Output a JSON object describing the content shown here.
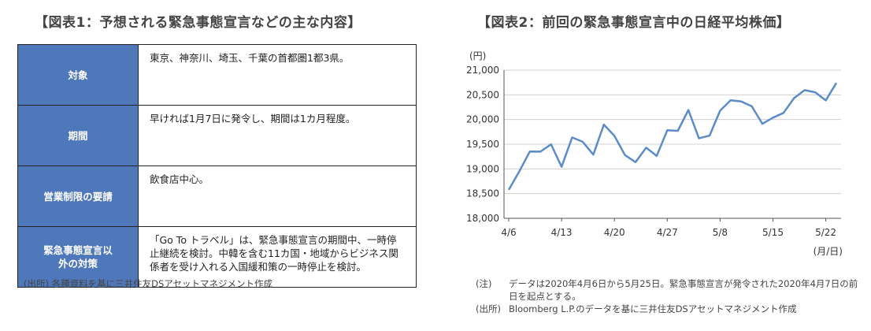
{
  "left": {
    "title": "【図表1：予想される緊急事態宣言などの主な内容】",
    "table": [
      {
        "header": "対象",
        "content": "東京、神奈川、埼玉、千葉の首都圏1都3県。"
      },
      {
        "header": "期間",
        "content": "早ければ1月7日に発令し、期間は1カ月程度。"
      },
      {
        "header": "営業制限の要請",
        "content": "飲食店中心。"
      },
      {
        "header": "緊急事態宣言以\n外の対策",
        "content": "「Go To トラベル」は、緊急事態宣言の期間中、一時停\n止継続を検討。中韓を含む11カ国・地域からビジネス関\n係者を受け入れる入国緩和策の一時停止を検討。"
      }
    ],
    "source": "(出所)  各種資料を基に三井住友DSアセットマネジメント作成"
  },
  "right": {
    "title": "【図表2：前回の緊急事態宣言中の日経平均株価】",
    "notes": [
      {
        "label": "(注)",
        "text": "データは2020年4月6日から5月25日。緊急事態宣言が発令された2020年4月7日の前日を起点とする。"
      },
      {
        "label": "(出所)",
        "text": "Bloomberg L.P.のデータを基に三井住友DSアセットマネジメント作成"
      }
    ]
  },
  "chart_data": {
    "type": "line",
    "ylabel": "(円)",
    "xlabel": "(月/日)",
    "ylim": [
      18000,
      21000
    ],
    "yticks": [
      18000,
      18500,
      19000,
      19500,
      20000,
      20500,
      21000
    ],
    "ytick_labels": [
      "18,000",
      "18,500",
      "19,000",
      "19,500",
      "20,000",
      "20,500",
      "21,000"
    ],
    "xtick_labels": [
      "4/6",
      "4/13",
      "4/20",
      "4/27",
      "5/8",
      "5/15",
      "5/22"
    ],
    "xtick_index": [
      0,
      5,
      10,
      15,
      20,
      25,
      30
    ],
    "grid": true,
    "color": "#5b8cc8",
    "x": [
      "4/6",
      "4/7",
      "4/8",
      "4/9",
      "4/10",
      "4/13",
      "4/14",
      "4/15",
      "4/16",
      "4/17",
      "4/20",
      "4/21",
      "4/22",
      "4/23",
      "4/24",
      "4/27",
      "4/28",
      "4/29",
      "4/30",
      "5/1",
      "5/8",
      "5/9",
      "5/10",
      "5/11",
      "5/12",
      "5/15",
      "5/16",
      "5/17",
      "5/18",
      "5/19",
      "5/22",
      "5/25"
    ],
    "values": [
      18576,
      18950,
      19353,
      19350,
      19498,
      19043,
      19638,
      19550,
      19290,
      19897,
      19669,
      19280,
      19137,
      19429,
      19262,
      19783,
      19771,
      20193,
      19619,
      19674,
      20179,
      20390,
      20366,
      20267,
      19914,
      20037,
      20133,
      20433,
      20595,
      20552,
      20388,
      20741
    ]
  }
}
